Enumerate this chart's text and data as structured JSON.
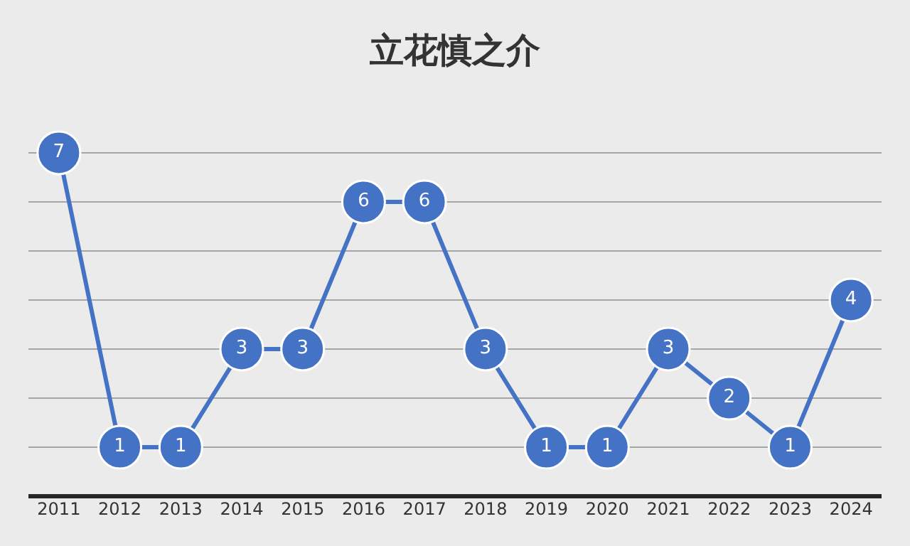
{
  "chart_data": {
    "type": "line",
    "title": "立花慎之介",
    "categories": [
      "2011",
      "2012",
      "2013",
      "2014",
      "2015",
      "2016",
      "2017",
      "2018",
      "2019",
      "2020",
      "2021",
      "2022",
      "2023",
      "2024"
    ],
    "series": [
      {
        "color": "#4472c4",
        "values": [
          7,
          1,
          1,
          3,
          3,
          6,
          6,
          3,
          1,
          1,
          3,
          2,
          1,
          4
        ]
      }
    ],
    "yticks": [
      {
        "value": 1,
        "label": null
      },
      {
        "value": 2,
        "label": null
      },
      {
        "value": 3,
        "label": null
      },
      {
        "value": 4,
        "label": null
      },
      {
        "value": 5,
        "label": null
      },
      {
        "value": 6,
        "label": null
      },
      {
        "value": 7,
        "label": null
      }
    ],
    "tick_labels": "x",
    "grid": "y",
    "legend": false,
    "marker": "circle",
    "line_style": "solid",
    "data_labels": true
  }
}
